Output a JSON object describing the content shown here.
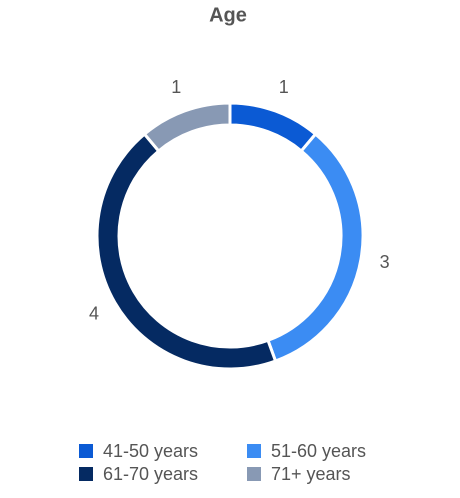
{
  "chart_data": {
    "type": "donut",
    "title": "Age",
    "categories": [
      "41-50 years",
      "51-60 years",
      "61-70 years",
      "71+ years"
    ],
    "values": [
      1,
      3,
      4,
      1
    ],
    "colors": [
      "#0b5ad4",
      "#3b8cf3",
      "#052a62",
      "#8899b4"
    ],
    "legend": "bottom"
  }
}
